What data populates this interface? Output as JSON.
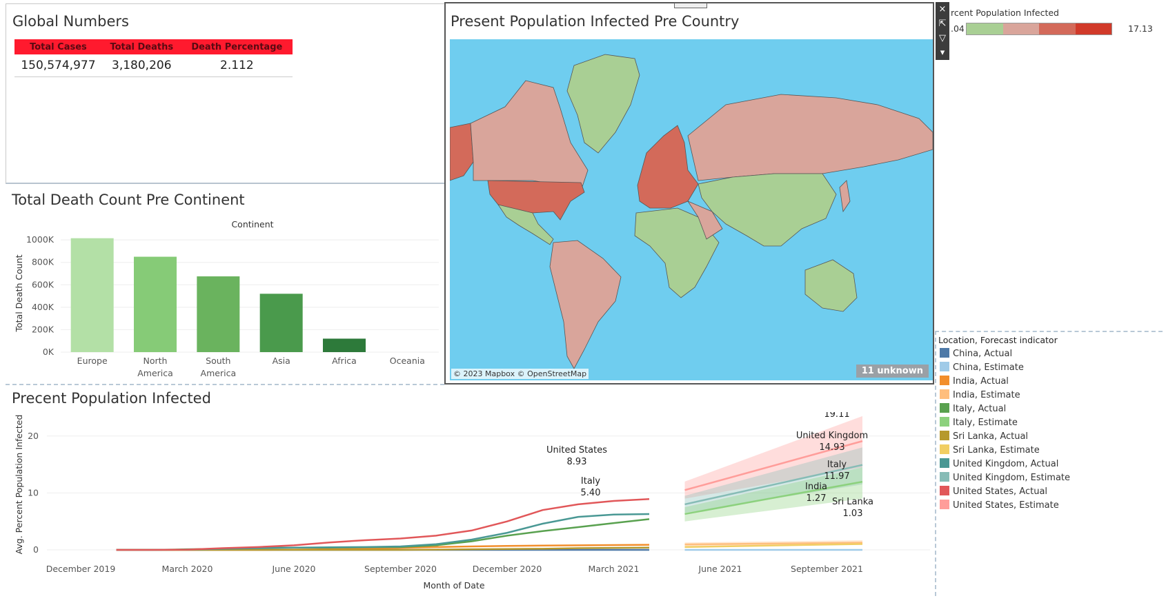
{
  "global": {
    "title": "Global Numbers",
    "headers": [
      "Total Cases",
      "Total Deaths",
      "Death Percentage"
    ],
    "values": [
      "150,574,977",
      "3,180,206",
      "2.112"
    ]
  },
  "map": {
    "title": "Present Population Infected Pre Country",
    "attribution": "© 2023 Mapbox © OpenStreetMap",
    "unknown_label": "11 unknown",
    "colors": {
      "water": "#6fcdef",
      "low": "#a9cf94",
      "mid": "#d9a59b",
      "high": "#d36a5a",
      "max": "#d13a2a"
    }
  },
  "color_legend": {
    "title": "rcent Population Infected",
    "min_label": ".04",
    "max_label": "17.13"
  },
  "toolbar": {
    "close_icon": "×",
    "popout_icon": "⇱",
    "filter_icon": "▽",
    "menu_icon": "▾"
  },
  "bar_chart": {
    "title": "Total Death Count Pre Continent",
    "chart_data": {
      "type": "bar",
      "column_header": "Continent",
      "categories": [
        "Europe",
        "North America",
        "South America",
        "Asia",
        "Africa",
        "Oceania"
      ],
      "category_lines": [
        [
          "Europe"
        ],
        [
          "North",
          "America"
        ],
        [
          "South",
          "America"
        ],
        [
          "Asia"
        ],
        [
          "Africa"
        ],
        [
          "Oceania"
        ]
      ],
      "values": [
        1015000,
        850000,
        675000,
        520000,
        120000,
        0
      ],
      "colors": [
        "#b3e0a6",
        "#86cb77",
        "#6ab35e",
        "#4a9a4c",
        "#2d7a3a",
        "#2d7a3a"
      ],
      "ylabel": "Total Death Count",
      "yticks": [
        "0K",
        "200K",
        "400K",
        "600K",
        "800K",
        "1000K"
      ],
      "ylim": [
        0,
        1050000
      ]
    }
  },
  "line_chart": {
    "title": "Precent Population Infected",
    "chart_data": {
      "type": "line",
      "xlabel": "Month of Date",
      "ylabel": "Avg. Percent Population Infected",
      "x_ticks": [
        "December 2019",
        "March 2020",
        "June 2020",
        "September 2020",
        "December 2020",
        "March 2021",
        "June 2021",
        "September 2021"
      ],
      "yticks": [
        "0",
        "10",
        "20"
      ],
      "ylim": [
        0,
        23
      ],
      "actual_x": [
        "2020-01",
        "2020-02",
        "2020-03",
        "2020-04",
        "2020-05",
        "2020-06",
        "2020-07",
        "2020-08",
        "2020-09",
        "2020-10",
        "2020-11",
        "2020-12",
        "2021-01",
        "2021-02",
        "2021-03",
        "2021-04"
      ],
      "estimate_x": [
        "2021-05",
        "2021-10"
      ],
      "series": [
        {
          "name": "China, Actual",
          "color": "#4e79a7",
          "values": [
            0,
            0,
            0,
            0,
            0,
            0,
            0,
            0,
            0,
            0,
            0,
            0,
            0,
            0,
            0,
            0
          ]
        },
        {
          "name": "China, Estimate",
          "color": "#a0cbe8",
          "values": [
            0,
            0
          ]
        },
        {
          "name": "India, Actual",
          "color": "#f28e2b",
          "values": [
            0,
            0,
            0,
            0,
            0,
            0.05,
            0.1,
            0.2,
            0.35,
            0.5,
            0.6,
            0.7,
            0.75,
            0.8,
            0.85,
            0.9
          ]
        },
        {
          "name": "India, Estimate",
          "color": "#ffbe7d",
          "values": [
            0.95,
            1.27
          ]
        },
        {
          "name": "Italy, Actual",
          "color": "#59a14f",
          "values": [
            0,
            0,
            0.1,
            0.2,
            0.35,
            0.4,
            0.4,
            0.45,
            0.5,
            0.8,
            1.5,
            2.5,
            3.3,
            4.0,
            4.7,
            5.4
          ]
        },
        {
          "name": "Italy, Estimate",
          "color": "#8cd17d",
          "values": [
            6.3,
            11.97
          ]
        },
        {
          "name": "Sri Lanka, Actual",
          "color": "#b6992d",
          "values": [
            0,
            0,
            0,
            0,
            0,
            0,
            0,
            0,
            0,
            0.05,
            0.1,
            0.15,
            0.2,
            0.3,
            0.35,
            0.4
          ]
        },
        {
          "name": "Sri Lanka, Estimate",
          "color": "#f1ce63",
          "values": [
            0.5,
            1.03
          ]
        },
        {
          "name": "United Kingdom, Actual",
          "color": "#499894",
          "values": [
            0,
            0,
            0.05,
            0.2,
            0.3,
            0.4,
            0.45,
            0.5,
            0.6,
            1.0,
            1.8,
            3.0,
            4.6,
            5.8,
            6.2,
            6.3
          ]
        },
        {
          "name": "United Kingdom, Estimate",
          "color": "#86bcb6",
          "values": [
            8.0,
            14.93
          ]
        },
        {
          "name": "United States, Actual",
          "color": "#e15759",
          "values": [
            0,
            0,
            0.05,
            0.3,
            0.5,
            0.8,
            1.3,
            1.7,
            2.0,
            2.5,
            3.4,
            5.0,
            7.0,
            8.0,
            8.6,
            8.93
          ]
        },
        {
          "name": "United States, Estimate",
          "color": "#ff9d9a",
          "values": [
            10.5,
            19.11
          ]
        }
      ],
      "annotations": [
        {
          "label": "United States",
          "value": "8.93"
        },
        {
          "label": "Italy",
          "value": "5.40"
        },
        {
          "label": "United States",
          "value": "19.11"
        },
        {
          "label": "United Kingdom",
          "value": "14.93"
        },
        {
          "label": "Italy",
          "value": "11.97"
        },
        {
          "label": "India",
          "value": "1.27"
        },
        {
          "label": "Sri Lanka",
          "value": "1.03"
        }
      ]
    }
  },
  "series_legend": {
    "title": "Location, Forecast indicator"
  }
}
